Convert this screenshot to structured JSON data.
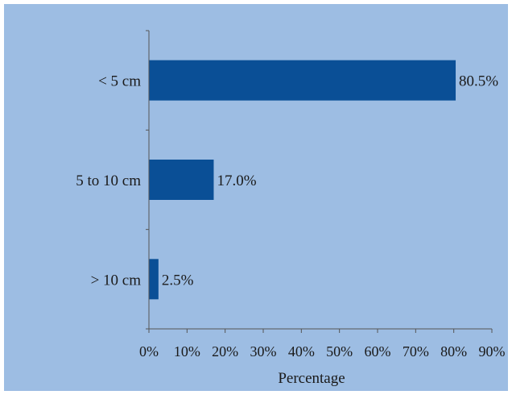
{
  "chart_data": {
    "type": "bar",
    "orientation": "horizontal",
    "categories": [
      "< 5 cm",
      "5 to 10 cm",
      "> 10 cm"
    ],
    "values": [
      80.5,
      17.0,
      2.5
    ],
    "value_labels": [
      "80.5%",
      "17.0%",
      "2.5%"
    ],
    "xlabel": "Percentage",
    "ylabel": "",
    "xlim": [
      0,
      90
    ],
    "xticks": [
      0,
      10,
      20,
      30,
      40,
      50,
      60,
      70,
      80,
      90
    ],
    "xtick_labels": [
      "0%",
      "10%",
      "20%",
      "30%",
      "40%",
      "50%",
      "60%",
      "70%",
      "80%",
      "90%"
    ],
    "grid": false,
    "legend": "none",
    "colors": {
      "background": "#9dbde3",
      "bar": "#0a4f96",
      "axis": "#555555",
      "border": "#ffffff"
    }
  }
}
